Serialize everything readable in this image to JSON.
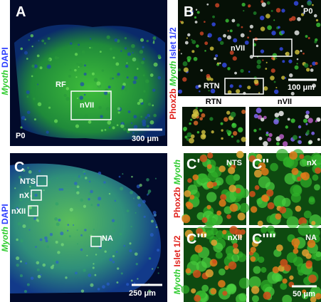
{
  "panel_a": {
    "letter": "A",
    "stain_1": "Myoth",
    "stain_2": "DAPI",
    "region_rf": "RF",
    "region_nvii": "nVII",
    "age": "P0",
    "scale_bar": "300 μm"
  },
  "panel_b": {
    "letter": "B",
    "age": "P0",
    "stain_1": "Phox2b",
    "stain_2": "Myoth",
    "stain_3": "Islet 1/2",
    "box_nvii": "nVII",
    "box_rtn": "RTN",
    "scale_bar": "100 μm",
    "inset_rtn": "RTN",
    "inset_nvii": "nVII"
  },
  "panel_c": {
    "letter": "C",
    "stain_1": "Myoth",
    "stain_2": "DAPI",
    "box_nts": "NTS",
    "box_nx": "nX",
    "box_nxii": "nXII",
    "box_na": "NA",
    "scale_bar": "250 μm"
  },
  "panel_c_insets": {
    "row_1_stain_1": "Phox2b",
    "row_1_stain_2": "Myoth",
    "row_2_stain_1": "Myoth",
    "row_2_stain_2": "Islet 1/2",
    "insets": [
      {
        "letter": "C'",
        "region": "NTS"
      },
      {
        "letter": "C''",
        "region": "nX"
      },
      {
        "letter": "C'''",
        "region": "nXII"
      },
      {
        "letter": "C''''",
        "region": "NA"
      }
    ],
    "scale_bar": "50 μm"
  }
}
